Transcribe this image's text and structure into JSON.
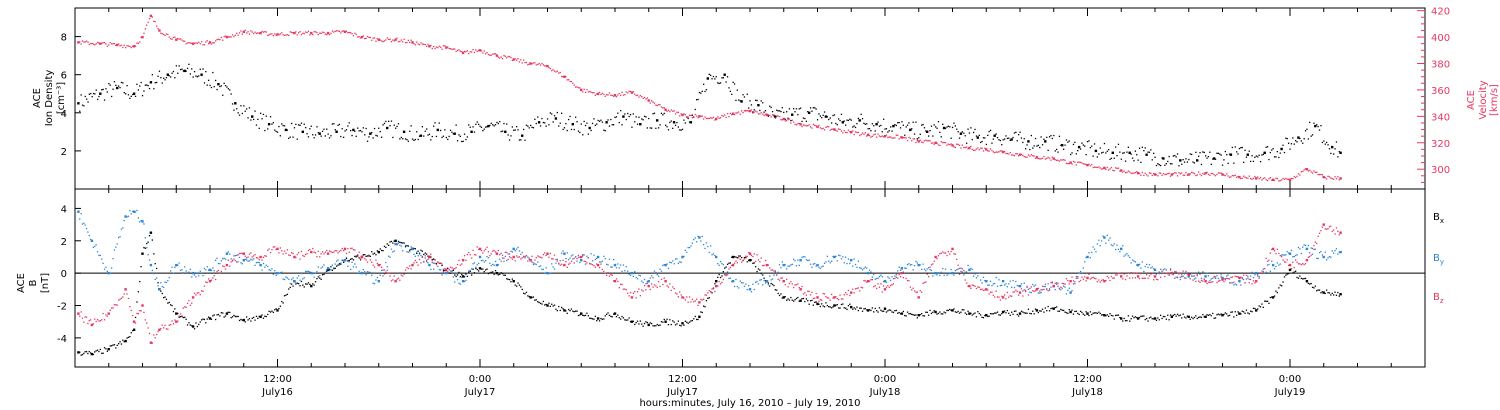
{
  "colors": {
    "black": "#000000",
    "pink": "#e8375f",
    "blue": "#2a86d8"
  },
  "time_axis": {
    "caption": "hours:minutes, July 16, 2010 – July 19, 2010",
    "ticks": [
      {
        "time": "12:00",
        "date": "July16",
        "hour": 30
      },
      {
        "time": "0:00",
        "date": "July17",
        "hour": 42
      },
      {
        "time": "12:00",
        "date": "July17",
        "hour": 54
      },
      {
        "time": "0:00",
        "date": "July18",
        "hour": 66
      },
      {
        "time": "12:00",
        "date": "July18",
        "hour": 78
      },
      {
        "time": "0:00",
        "date": "July19",
        "hour": 90
      }
    ],
    "range_hours": [
      18,
      98
    ]
  },
  "chart_data": [
    {
      "type": "scatter",
      "panel": "top",
      "ylabel_left": [
        "ACE",
        "Ion Density",
        "[cm⁻³]"
      ],
      "ylabel_right": [
        "ACE",
        "Velocity",
        "[km/s]"
      ],
      "yticks_left": [
        2,
        4,
        6,
        8
      ],
      "yticks_right": [
        300,
        320,
        340,
        360,
        380,
        400,
        420
      ],
      "ylim_left": [
        0,
        9.5
      ],
      "ylim_right": [
        285,
        422
      ],
      "grid": false,
      "series": [
        {
          "name": "Ion Density",
          "color": "#000000",
          "axis": "left",
          "x": [
            18.2,
            19.5,
            20.5,
            21.5,
            22.5,
            23.5,
            24.5,
            25.5,
            26.5,
            27.5,
            28.5,
            29.5,
            30.5,
            31.5,
            32.5,
            33.5,
            34.5,
            35.5,
            36.5,
            37.5,
            38.5,
            39.5,
            40.5,
            41.5,
            42.5,
            43.5,
            44.5,
            45.5,
            46.5,
            47.5,
            48.5,
            49.5,
            50.5,
            51.5,
            52.5,
            53.5,
            54.5,
            55.5,
            56.5,
            57.5,
            58.5,
            59.5,
            60.5,
            61.5,
            62.5,
            63.5,
            64.5,
            65.5,
            66.5,
            67.5,
            68.5,
            69.5,
            70.5,
            71.5,
            72.5,
            73.5,
            74.5,
            75.5,
            76.5,
            77.5,
            78.5,
            79.5,
            80.5,
            81.5,
            82.5,
            83.5,
            84.5,
            85.5,
            86.5,
            87.5,
            88.5,
            89.5,
            90.5,
            91.5,
            92.5,
            93.0
          ],
          "y": [
            4.5,
            5.0,
            5.3,
            5.0,
            5.6,
            6.0,
            6.2,
            6.0,
            5.5,
            4.5,
            3.8,
            3.4,
            3.1,
            3.0,
            2.9,
            3.0,
            3.1,
            2.9,
            3.2,
            3.0,
            2.8,
            3.1,
            2.9,
            3.0,
            3.3,
            3.0,
            2.8,
            3.5,
            3.7,
            3.4,
            3.2,
            3.5,
            3.8,
            3.4,
            3.6,
            3.5,
            3.5,
            5.8,
            6.0,
            4.6,
            4.4,
            3.8,
            3.9,
            4.0,
            3.8,
            3.5,
            3.6,
            3.4,
            3.3,
            3.1,
            3.0,
            3.2,
            2.9,
            2.7,
            2.8,
            2.6,
            2.5,
            2.5,
            2.3,
            2.2,
            2.0,
            1.9,
            1.9,
            1.8,
            1.6,
            1.5,
            1.5,
            1.6,
            1.8,
            1.8,
            1.9,
            2.1,
            2.7,
            3.3,
            2.2,
            1.9
          ]
        },
        {
          "name": "Velocity",
          "color": "#e8375f",
          "axis": "right",
          "x": [
            18.2,
            19.5,
            20.5,
            21.5,
            22.0,
            22.5,
            23.0,
            24.0,
            25.0,
            26.0,
            27.0,
            28.0,
            29.0,
            30.0,
            31.0,
            32.0,
            33.0,
            34.0,
            35.0,
            36.0,
            37.0,
            38.0,
            39.0,
            40.0,
            41.0,
            42.0,
            43.0,
            44.0,
            45.0,
            46.0,
            47.0,
            48.0,
            49.0,
            50.0,
            51.0,
            52.0,
            53.0,
            54.0,
            55.0,
            56.0,
            57.0,
            58.0,
            59.0,
            60.0,
            61.0,
            62.0,
            63.0,
            64.0,
            65.0,
            66.0,
            67.0,
            68.0,
            69.0,
            70.0,
            71.0,
            72.0,
            73.0,
            74.0,
            75.0,
            76.0,
            77.0,
            78.0,
            79.0,
            80.0,
            81.0,
            82.0,
            83.0,
            84.0,
            85.0,
            86.0,
            87.0,
            88.0,
            89.0,
            90.0,
            91.0,
            92.0,
            93.0
          ],
          "y": [
            396,
            395,
            394,
            393,
            400,
            416,
            405,
            398,
            395,
            396,
            400,
            404,
            403,
            402,
            403,
            403,
            403,
            404,
            400,
            398,
            398,
            396,
            393,
            392,
            388,
            390,
            386,
            383,
            380,
            378,
            370,
            360,
            357,
            356,
            358,
            352,
            345,
            341,
            340,
            338,
            342,
            344,
            341,
            338,
            334,
            332,
            330,
            328,
            326,
            325,
            324,
            321,
            320,
            318,
            316,
            315,
            313,
            311,
            309,
            308,
            305,
            303,
            301,
            299,
            297,
            296,
            296,
            296,
            297,
            296,
            294,
            293,
            292,
            292,
            300,
            294,
            293
          ]
        }
      ]
    },
    {
      "type": "scatter",
      "panel": "bottom",
      "ylabel_left": [
        "ACE",
        "B",
        "[nT]"
      ],
      "yticks_left": [
        -4,
        -2,
        0,
        2,
        4
      ],
      "ylim_left": [
        -5.8,
        5.2
      ],
      "zero_line": 0,
      "grid": false,
      "legend": [
        "B",
        "B",
        "B"
      ],
      "legend_subscripts": [
        "x",
        "y",
        "z"
      ],
      "series": [
        {
          "name": "Bx",
          "color": "#000000",
          "x": [
            18.2,
            19.0,
            20.0,
            21.0,
            21.5,
            22.0,
            22.5,
            23.0,
            24.0,
            25.0,
            26.0,
            27.0,
            28.0,
            29.0,
            30.0,
            31.0,
            32.0,
            33.0,
            34.0,
            35.0,
            36.0,
            37.0,
            38.0,
            39.0,
            40.0,
            41.0,
            42.0,
            43.0,
            44.0,
            45.0,
            46.0,
            47.0,
            48.0,
            49.0,
            50.0,
            51.0,
            52.0,
            53.0,
            54.0,
            55.0,
            56.0,
            57.0,
            58.0,
            59.0,
            60.0,
            61.0,
            62.0,
            63.0,
            64.0,
            65.0,
            66.0,
            67.0,
            68.0,
            69.0,
            70.0,
            71.0,
            72.0,
            73.0,
            74.0,
            75.0,
            76.0,
            77.0,
            78.0,
            79.0,
            80.0,
            81.0,
            82.0,
            83.0,
            84.0,
            85.0,
            86.0,
            87.0,
            88.0,
            89.0,
            90.0,
            91.0,
            92.0,
            93.0
          ],
          "y": [
            -4.9,
            -5.0,
            -4.7,
            -4.2,
            -3.5,
            1.2,
            2.5,
            -1.0,
            -2.5,
            -3.3,
            -2.8,
            -2.5,
            -2.9,
            -2.7,
            -2.3,
            -0.5,
            -0.8,
            0.2,
            0.8,
            1.0,
            1.3,
            2.0,
            1.5,
            1.0,
            0.2,
            -0.2,
            0.3,
            0.0,
            -0.5,
            -1.5,
            -2.0,
            -2.3,
            -2.5,
            -2.8,
            -2.5,
            -3.0,
            -3.2,
            -3.0,
            -3.1,
            -2.7,
            -0.5,
            1.0,
            0.8,
            -0.5,
            -1.5,
            -1.7,
            -1.9,
            -2.0,
            -2.1,
            -2.3,
            -2.2,
            -2.5,
            -2.6,
            -2.4,
            -2.3,
            -2.5,
            -2.6,
            -2.4,
            -2.5,
            -2.3,
            -2.2,
            -2.4,
            -2.5,
            -2.6,
            -2.8,
            -2.8,
            -2.8,
            -2.7,
            -2.7,
            -2.7,
            -2.6,
            -2.5,
            -2.3,
            -1.5,
            0.2,
            -0.5,
            -1.2,
            -1.3
          ]
        },
        {
          "name": "By",
          "color": "#2a86d8",
          "x": [
            18.2,
            19.0,
            20.0,
            21.0,
            21.5,
            22.0,
            22.5,
            23.0,
            24.0,
            25.0,
            26.0,
            27.0,
            28.0,
            29.0,
            30.0,
            31.0,
            32.0,
            33.0,
            34.0,
            35.0,
            36.0,
            37.0,
            38.0,
            39.0,
            40.0,
            41.0,
            42.0,
            43.0,
            44.0,
            45.0,
            46.0,
            47.0,
            48.0,
            49.0,
            50.0,
            51.0,
            52.0,
            53.0,
            54.0,
            55.0,
            56.0,
            57.0,
            58.0,
            59.0,
            60.0,
            61.0,
            62.0,
            63.0,
            64.0,
            65.0,
            66.0,
            67.0,
            68.0,
            69.0,
            70.0,
            71.0,
            72.0,
            73.0,
            74.0,
            75.0,
            76.0,
            77.0,
            78.0,
            79.0,
            80.0,
            81.0,
            82.0,
            83.0,
            84.0,
            85.0,
            86.0,
            87.0,
            88.0,
            89.0,
            90.0,
            91.0,
            92.0,
            93.0
          ],
          "y": [
            3.8,
            2.0,
            0.0,
            3.5,
            3.8,
            3.2,
            0.5,
            -1.0,
            0.5,
            0.0,
            0.2,
            1.2,
            0.8,
            0.5,
            0.0,
            -0.5,
            0.0,
            0.3,
            0.8,
            0.0,
            -0.5,
            1.8,
            1.5,
            0.5,
            0.0,
            -0.5,
            1.0,
            0.5,
            1.5,
            0.8,
            0.0,
            1.2,
            0.8,
            1.0,
            0.5,
            0.0,
            -0.5,
            0.5,
            1.0,
            2.2,
            1.0,
            -0.5,
            -1.0,
            -0.5,
            0.5,
            0.8,
            0.5,
            1.0,
            0.8,
            0.0,
            -0.5,
            0.3,
            0.5,
            0.0,
            0.0,
            0.2,
            -0.5,
            -0.5,
            -0.8,
            -1.0,
            -0.8,
            -1.2,
            1.0,
            2.2,
            1.5,
            0.5,
            0.2,
            0.0,
            -0.2,
            -0.2,
            -0.3,
            -0.5,
            0.0,
            0.5,
            1.2,
            1.5,
            1.0,
            1.3
          ]
        },
        {
          "name": "Bz",
          "color": "#e8375f",
          "x": [
            18.2,
            19.0,
            20.0,
            21.0,
            21.5,
            22.0,
            22.5,
            23.0,
            24.0,
            25.0,
            26.0,
            27.0,
            28.0,
            29.0,
            30.0,
            31.0,
            32.0,
            33.0,
            34.0,
            35.0,
            36.0,
            37.0,
            38.0,
            39.0,
            40.0,
            41.0,
            42.0,
            43.0,
            44.0,
            45.0,
            46.0,
            47.0,
            48.0,
            49.0,
            50.0,
            51.0,
            52.0,
            53.0,
            54.0,
            55.0,
            56.0,
            57.0,
            58.0,
            59.0,
            60.0,
            61.0,
            62.0,
            63.0,
            64.0,
            65.0,
            66.0,
            67.0,
            68.0,
            69.0,
            70.0,
            71.0,
            72.0,
            73.0,
            74.0,
            75.0,
            76.0,
            77.0,
            78.0,
            79.0,
            80.0,
            81.0,
            82.0,
            83.0,
            84.0,
            85.0,
            86.0,
            87.0,
            88.0,
            89.0,
            90.0,
            91.0,
            92.0,
            93.0
          ],
          "y": [
            -2.5,
            -3.2,
            -2.5,
            -1.0,
            -3.0,
            -2.0,
            -4.3,
            -3.5,
            -3.0,
            -1.5,
            -0.5,
            0.5,
            1.2,
            1.0,
            1.5,
            1.0,
            1.3,
            1.2,
            1.5,
            1.0,
            0.5,
            -0.5,
            0.5,
            1.0,
            0.2,
            0.8,
            1.5,
            1.2,
            1.0,
            0.8,
            1.2,
            0.5,
            1.0,
            0.5,
            -0.5,
            -1.5,
            -0.8,
            -0.5,
            -1.5,
            -1.8,
            -0.8,
            0.5,
            1.2,
            0.5,
            -0.5,
            -1.0,
            -1.5,
            -1.5,
            -1.2,
            -0.5,
            -1.0,
            0.0,
            -1.5,
            1.0,
            1.5,
            -0.8,
            -1.0,
            -1.5,
            -1.2,
            -1.0,
            -0.8,
            -0.5,
            -0.3,
            -0.5,
            -0.2,
            -0.2,
            -0.2,
            0.0,
            -0.1,
            -0.5,
            -0.4,
            -0.3,
            -0.5,
            1.5,
            0.5,
            0.8,
            3.0,
            2.5
          ]
        }
      ]
    }
  ]
}
